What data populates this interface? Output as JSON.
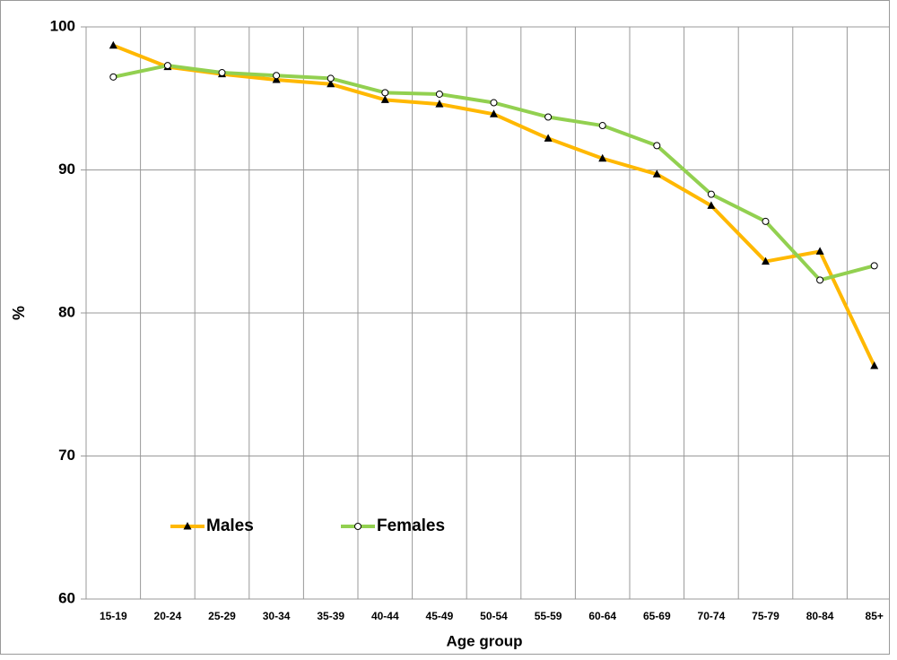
{
  "chart_data": {
    "type": "line",
    "x_label": "Age group",
    "y_label": "%",
    "categories": [
      "15-19",
      "20-24",
      "25-29",
      "30-34",
      "35-39",
      "40-44",
      "45-49",
      "50-54",
      "55-59",
      "60-64",
      "65-69",
      "70-74",
      "75-79",
      "80-84",
      "85+"
    ],
    "series": [
      {
        "name": "Males",
        "color": "#ffb800",
        "marker": "triangle",
        "values": [
          98.7,
          97.2,
          96.7,
          96.3,
          96.0,
          94.9,
          94.6,
          93.9,
          92.2,
          90.8,
          89.7,
          87.5,
          83.6,
          84.3,
          76.3
        ]
      },
      {
        "name": "Females",
        "color": "#92d050",
        "marker": "circle",
        "values": [
          96.5,
          97.3,
          96.8,
          96.6,
          96.4,
          95.4,
          95.3,
          94.7,
          93.7,
          93.1,
          91.7,
          88.3,
          86.4,
          82.3,
          83.3
        ]
      }
    ],
    "ylim": [
      60,
      100
    ],
    "yticks": [
      60,
      70,
      80,
      90,
      100
    ],
    "grid": true,
    "legend_position": "lower left"
  }
}
